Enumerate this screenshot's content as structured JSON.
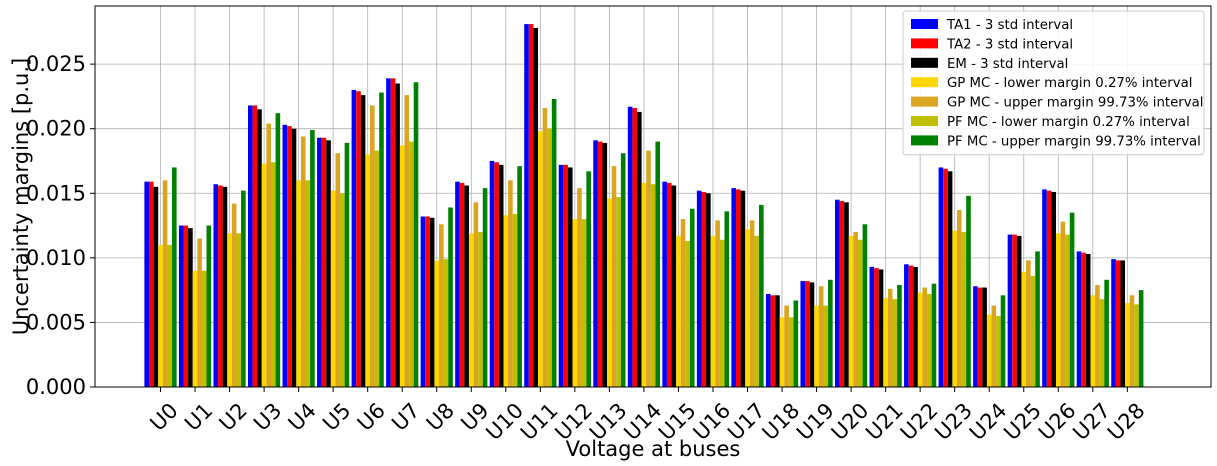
{
  "chart_data": {
    "type": "bar",
    "title": "",
    "xlabel": "Voltage at buses",
    "ylabel": "Uncertainty margins [p.u.]",
    "ylim": [
      0,
      0.0295
    ],
    "yticks": [
      0.0,
      0.005,
      0.01,
      0.015,
      0.02,
      0.025
    ],
    "ytick_labels": [
      "0.000",
      "0.005",
      "0.010",
      "0.015",
      "0.020",
      "0.025"
    ],
    "grid": true,
    "legend_position": "top-right",
    "categories": [
      "U0",
      "U1",
      "U2",
      "U3",
      "U4",
      "U5",
      "U6",
      "U7",
      "U8",
      "U9",
      "U10",
      "U11",
      "U12",
      "U13",
      "U14",
      "U15",
      "U16",
      "U17",
      "U18",
      "U19",
      "U20",
      "U21",
      "U22",
      "U23",
      "U24",
      "U25",
      "U26",
      "U27",
      "U28"
    ],
    "series": [
      {
        "name": "TA1 - 3 std interval",
        "color": "#0000ff",
        "values": [
          0.0159,
          0.0125,
          0.0157,
          0.0218,
          0.0203,
          0.0193,
          0.023,
          0.0239,
          0.0132,
          0.0159,
          0.0175,
          0.0281,
          0.0172,
          0.0191,
          0.0217,
          0.0159,
          0.0152,
          0.0154,
          0.0072,
          0.0082,
          0.0145,
          0.0093,
          0.0095,
          0.017,
          0.0078,
          0.0118,
          0.0153,
          0.0105,
          0.0099
        ]
      },
      {
        "name": "TA2 - 3 std interval",
        "color": "#ff0000",
        "values": [
          0.0159,
          0.0125,
          0.0156,
          0.0218,
          0.0202,
          0.0193,
          0.0229,
          0.0239,
          0.0132,
          0.0158,
          0.0174,
          0.0281,
          0.0172,
          0.019,
          0.0216,
          0.0158,
          0.0151,
          0.0153,
          0.0071,
          0.0082,
          0.0144,
          0.0092,
          0.0094,
          0.0169,
          0.0077,
          0.0118,
          0.0152,
          0.0104,
          0.0098
        ]
      },
      {
        "name": "EM - 3 std interval",
        "color": "#000000",
        "values": [
          0.0155,
          0.0123,
          0.0155,
          0.0215,
          0.02,
          0.0191,
          0.0226,
          0.0235,
          0.0131,
          0.0156,
          0.0172,
          0.0278,
          0.017,
          0.0189,
          0.0213,
          0.0156,
          0.015,
          0.0152,
          0.0071,
          0.0081,
          0.0143,
          0.0091,
          0.0093,
          0.0167,
          0.0077,
          0.0117,
          0.0151,
          0.0103,
          0.0098
        ]
      },
      {
        "name": "GP MC - lower margin 0.27% interval",
        "color": "#ffd700",
        "values": [
          0.011,
          0.009,
          0.0119,
          0.0173,
          0.016,
          0.0152,
          0.018,
          0.0187,
          0.0098,
          0.0119,
          0.0133,
          0.0198,
          0.013,
          0.0146,
          0.0158,
          0.0117,
          0.0117,
          0.0122,
          0.0054,
          0.0063,
          0.0117,
          0.0069,
          0.0073,
          0.0121,
          0.0056,
          0.0089,
          0.0119,
          0.0071,
          0.0065
        ]
      },
      {
        "name": "GP MC - upper margin 99.73% interval",
        "color": "#daa520",
        "values": [
          0.016,
          0.0115,
          0.0142,
          0.0204,
          0.0194,
          0.0181,
          0.0218,
          0.0226,
          0.0126,
          0.0143,
          0.016,
          0.0216,
          0.0154,
          0.0171,
          0.0183,
          0.013,
          0.0129,
          0.0129,
          0.0063,
          0.0078,
          0.012,
          0.0076,
          0.0077,
          0.0137,
          0.0063,
          0.0098,
          0.0128,
          0.0079,
          0.0071
        ]
      },
      {
        "name": "PF MC - lower margin 0.27% interval",
        "color": "#bfbf00",
        "values": [
          0.011,
          0.009,
          0.0119,
          0.0174,
          0.016,
          0.015,
          0.0183,
          0.019,
          0.0099,
          0.012,
          0.0134,
          0.02,
          0.013,
          0.0147,
          0.0157,
          0.0113,
          0.0114,
          0.0117,
          0.0054,
          0.0063,
          0.0114,
          0.0068,
          0.0072,
          0.012,
          0.0055,
          0.0086,
          0.0118,
          0.0068,
          0.0064
        ]
      },
      {
        "name": "PF MC - upper margin 99.73% interval",
        "color": "#008000",
        "values": [
          0.017,
          0.0125,
          0.0152,
          0.0212,
          0.0199,
          0.0189,
          0.0228,
          0.0236,
          0.0139,
          0.0154,
          0.0171,
          0.0223,
          0.0167,
          0.0181,
          0.019,
          0.0138,
          0.0136,
          0.0141,
          0.0067,
          0.0083,
          0.0126,
          0.0079,
          0.008,
          0.0148,
          0.0071,
          0.0105,
          0.0135,
          0.0083,
          0.0075
        ]
      }
    ]
  }
}
